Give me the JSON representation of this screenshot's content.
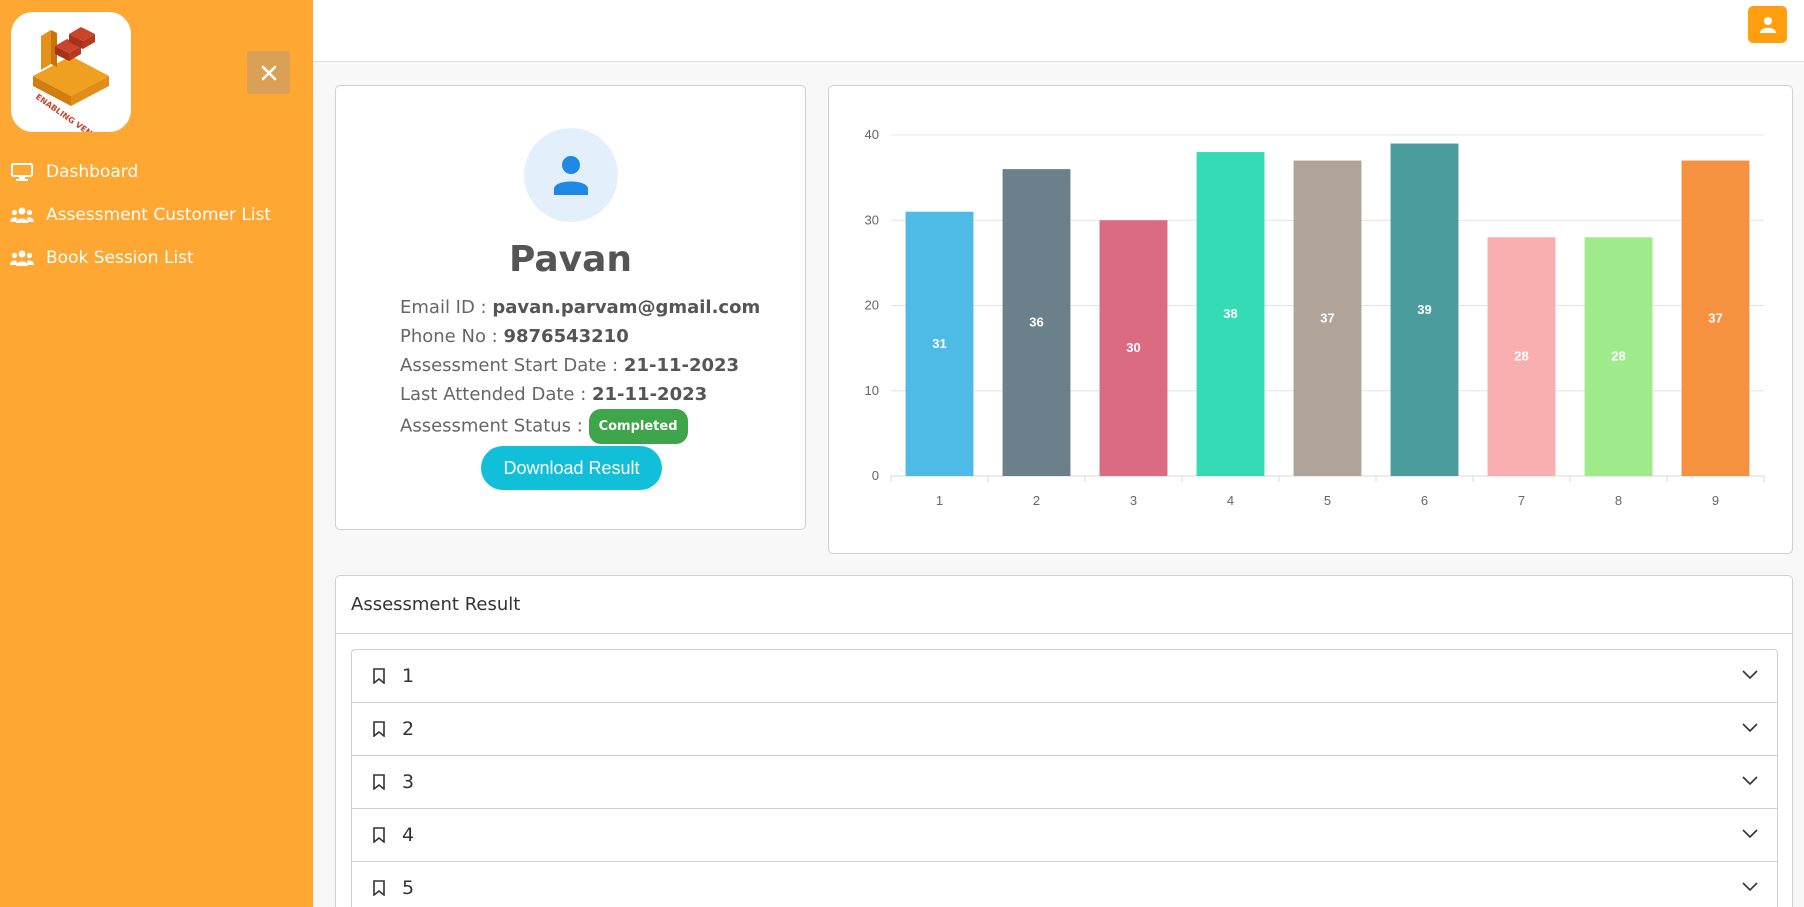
{
  "sidebar": {
    "logo_text": "ENABLING VENTURES",
    "items": [
      {
        "label": "Dashboard",
        "icon": "monitor-icon"
      },
      {
        "label": "Assessment Customer List",
        "icon": "users-icon"
      },
      {
        "label": "Book Session List",
        "icon": "users-icon"
      }
    ],
    "close_icon": "close-icon"
  },
  "topbar": {
    "user_icon": "user-icon"
  },
  "profile": {
    "name": "Pavan",
    "email_label": "Email ID : ",
    "email": "pavan.parvam@gmail.com",
    "phone_label": "Phone No : ",
    "phone": "9876543210",
    "start_label": "Assessment Start Date : ",
    "start_date": "21-11-2023",
    "last_label": "Last Attended Date : ",
    "last_date": "21-11-2023",
    "status_label": "Assessment Status : ",
    "status": "Completed",
    "download_label": "Download Result"
  },
  "results": {
    "title": "Assessment Result",
    "items": [
      "1",
      "2",
      "3",
      "4",
      "5"
    ]
  },
  "colors": {
    "sidebar": "#FFA733",
    "accent": "#FF9F10",
    "download": "#12BFD9",
    "badge": "#3EA54B"
  },
  "chart_data": {
    "type": "bar",
    "categories": [
      "1",
      "2",
      "3",
      "4",
      "5",
      "6",
      "7",
      "8",
      "9"
    ],
    "values": [
      31,
      36,
      30,
      38,
      37,
      39,
      28,
      28,
      37
    ],
    "colors": [
      "#4EBAE6",
      "#6B808B",
      "#DB6B82",
      "#34DBB5",
      "#B0A39A",
      "#4A9D9C",
      "#F9AEB0",
      "#9FEB8B",
      "#F5913F"
    ],
    "ylim": [
      0,
      40
    ],
    "yticks": [
      0,
      10,
      20,
      30,
      40
    ],
    "grid": true,
    "title": "",
    "xlabel": "",
    "ylabel": ""
  }
}
